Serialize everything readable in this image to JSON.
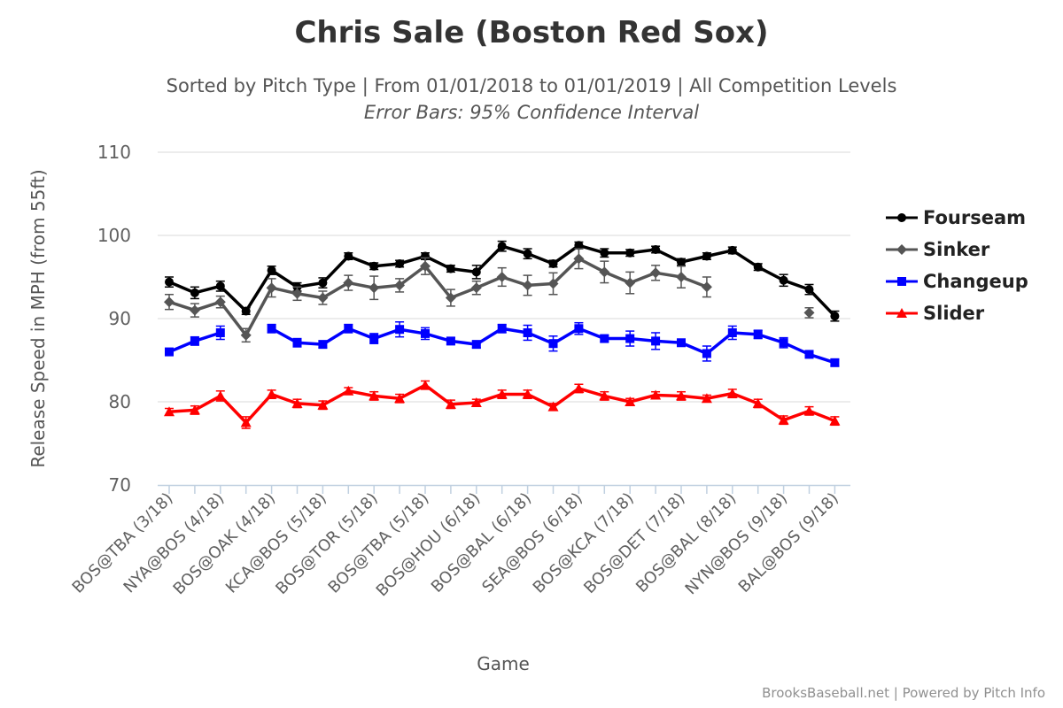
{
  "chart_data": {
    "type": "line",
    "title": "Chris Sale (Boston Red Sox)",
    "subtitle": "Sorted by Pitch Type | From 01/01/2018 to 01/01/2019 | All Competition Levels",
    "subtitle2": "Error Bars: 95% Confidence Interval",
    "xlabel": "Game",
    "ylabel": "Release Speed in MPH (from 55ft)",
    "ylim": [
      70,
      110
    ],
    "yticks": [
      70,
      80,
      90,
      100,
      110
    ],
    "grid": "horizontal",
    "legend_position": "right",
    "x_tick_labels": [
      "BOS@TBA (3/18)",
      "NYA@BOS (4/18)",
      "BOS@OAK (4/18)",
      "KCA@BOS (5/18)",
      "BOS@TOR (5/18)",
      "BOS@TBA (5/18)",
      "BOS@HOU (6/18)",
      "BOS@BAL (6/18)",
      "SEA@BOS (6/18)",
      "BOS@KCA (7/18)",
      "BOS@DET (7/18)",
      "BOS@BAL (8/18)",
      "NYN@BOS (9/18)",
      "BAL@BOS (9/18)"
    ],
    "x_tick_every": 2,
    "game_count": 27,
    "series": [
      {
        "name": "Fourseam",
        "color": "#000000",
        "marker": "circle",
        "values": [
          94.4,
          93.1,
          93.9,
          90.9,
          95.8,
          93.8,
          94.3,
          97.5,
          96.3,
          96.6,
          97.5,
          96.0,
          95.6,
          98.7,
          97.8,
          96.6,
          98.8,
          97.9,
          97.9,
          98.3,
          96.8,
          97.5,
          98.2,
          96.2,
          94.6,
          93.5,
          90.3
        ],
        "error": [
          0.6,
          0.7,
          0.6,
          0.4,
          0.5,
          0.5,
          0.6,
          0.4,
          0.4,
          0.4,
          0.4,
          0.4,
          0.8,
          0.6,
          0.6,
          0.4,
          0.4,
          0.5,
          0.4,
          0.4,
          0.4,
          0.4,
          0.4,
          0.4,
          0.7,
          0.6,
          0.6
        ]
      },
      {
        "name": "Sinker",
        "color": "#555555",
        "marker": "diamond",
        "values": [
          92.0,
          91.0,
          92.0,
          88.0,
          93.7,
          93.0,
          92.5,
          94.3,
          93.7,
          94.0,
          96.3,
          92.5,
          93.7,
          95.0,
          94.0,
          94.2,
          97.2,
          95.6,
          94.3,
          95.5,
          95.0,
          93.8,
          null,
          null,
          null,
          90.7,
          null
        ],
        "error": [
          0.9,
          0.8,
          0.7,
          0.8,
          1.1,
          0.8,
          0.8,
          0.9,
          1.4,
          0.8,
          1.0,
          1.0,
          0.8,
          1.1,
          1.2,
          1.3,
          1.2,
          1.3,
          1.3,
          0.9,
          1.3,
          1.2,
          null,
          null,
          null,
          0.6,
          null
        ]
      },
      {
        "name": "Changeup",
        "color": "#0000ff",
        "marker": "square",
        "values": [
          86.0,
          87.3,
          88.3,
          null,
          88.8,
          87.1,
          86.9,
          88.8,
          87.6,
          88.7,
          88.2,
          87.3,
          86.9,
          88.8,
          88.3,
          87.0,
          88.8,
          87.6,
          87.6,
          87.3,
          87.1,
          85.8,
          88.3,
          88.1,
          87.1,
          85.7,
          84.7
        ],
        "error": [
          0.4,
          0.5,
          0.8,
          null,
          0.5,
          0.5,
          0.4,
          0.5,
          0.6,
          0.9,
          0.7,
          0.4,
          0.4,
          0.5,
          0.9,
          0.9,
          0.7,
          0.4,
          0.9,
          1.0,
          0.4,
          0.9,
          0.8,
          0.5,
          0.6,
          0.4,
          0.4
        ]
      },
      {
        "name": "Slider",
        "color": "#ff0000",
        "marker": "triangle",
        "values": [
          78.8,
          79.0,
          80.7,
          77.5,
          80.9,
          79.8,
          79.6,
          81.3,
          80.7,
          80.4,
          82.0,
          79.7,
          79.9,
          80.9,
          80.9,
          79.4,
          81.6,
          80.7,
          80.0,
          80.8,
          80.7,
          80.4,
          81.0,
          79.8,
          77.8,
          78.9,
          77.7
        ],
        "error": [
          0.4,
          0.5,
          0.6,
          0.7,
          0.5,
          0.5,
          0.5,
          0.4,
          0.5,
          0.5,
          0.5,
          0.5,
          0.4,
          0.5,
          0.5,
          0.4,
          0.5,
          0.5,
          0.4,
          0.4,
          0.5,
          0.4,
          0.5,
          0.5,
          0.5,
          0.5,
          0.5
        ]
      }
    ]
  },
  "credits": "BrooksBaseball.net | Powered by Pitch Info"
}
